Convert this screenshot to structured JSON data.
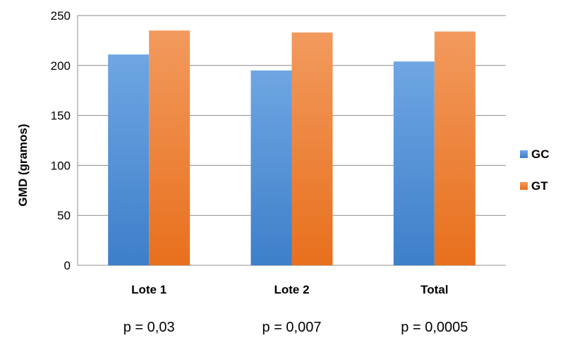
{
  "chart_data": {
    "type": "bar",
    "categories": [
      "Lote 1",
      "Lote 2",
      "Total"
    ],
    "series": [
      {
        "name": "GC",
        "values": [
          211,
          195,
          204
        ],
        "color": "#4F8FD6"
      },
      {
        "name": "GT",
        "values": [
          235,
          233,
          234
        ],
        "color": "#F07D2E"
      }
    ],
    "ylabel": "GMD (gramos)",
    "xlabel": "",
    "ylim": [
      0,
      250
    ],
    "yticks": [
      0,
      50,
      100,
      150,
      200,
      250
    ],
    "grid": true,
    "legend_position": "right",
    "annotations": [
      "p = 0,03",
      "p = 0,007",
      "p = 0,0005"
    ]
  }
}
